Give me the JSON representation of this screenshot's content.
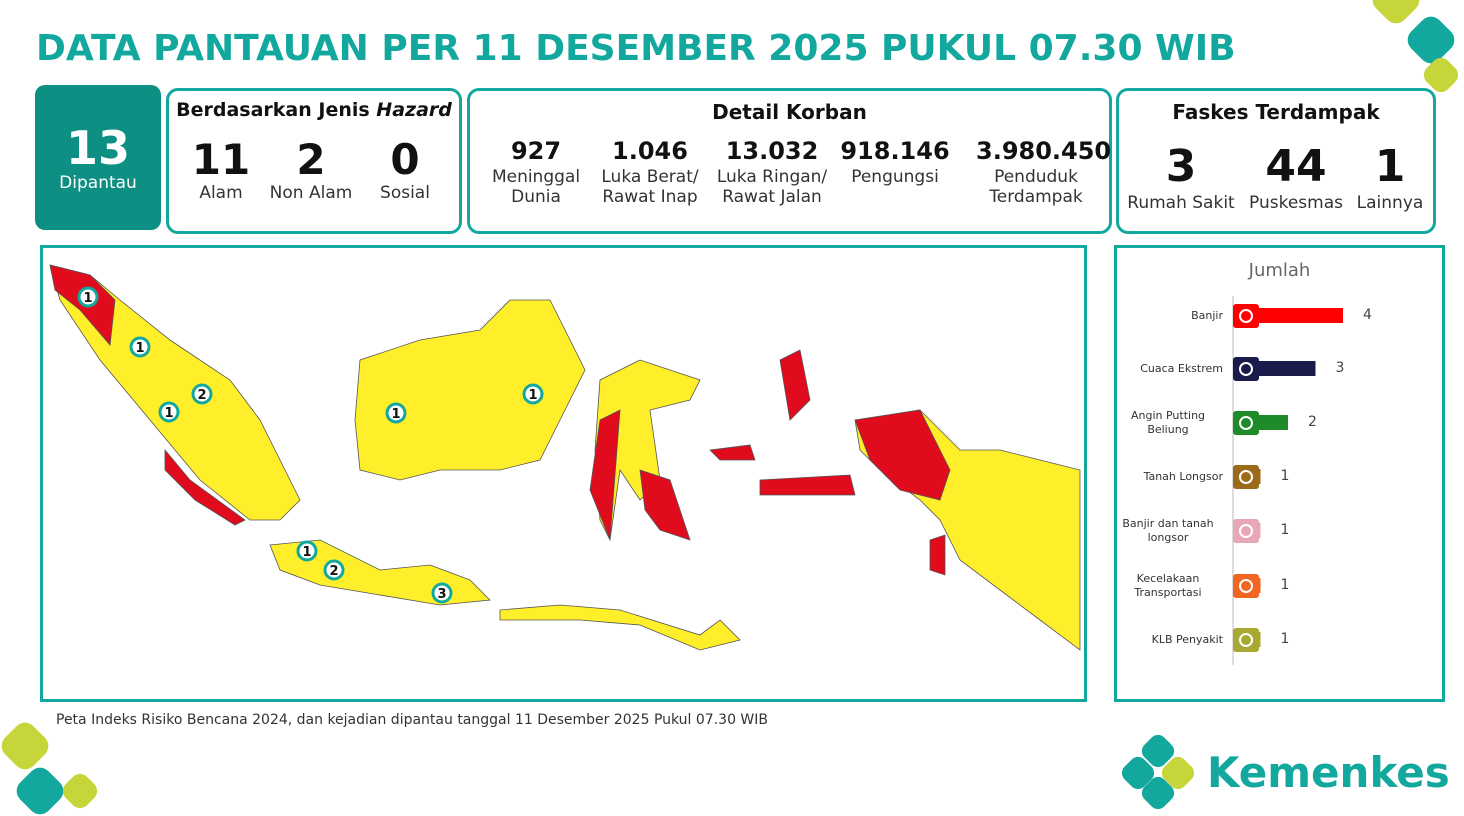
{
  "header": {
    "title": "DATA PANTAUAN PER 11 DESEMBER 2025 PUKUL 07.30 WIB"
  },
  "monitored": {
    "value": "13",
    "label": "Dipantau"
  },
  "hazard": {
    "title": "Berdasarkan Jenis",
    "title_emphasis": "Hazard",
    "items": [
      {
        "value": "11",
        "label": "Alam"
      },
      {
        "value": "2",
        "label": "Non Alam"
      },
      {
        "value": "0",
        "label": "Sosial"
      }
    ]
  },
  "victims": {
    "title": "Detail Korban",
    "items": [
      {
        "value": "927",
        "label": "Meninggal Dunia"
      },
      {
        "value": "1.046",
        "label": "Luka Berat/ Rawat Inap"
      },
      {
        "value": "13.032",
        "label": "Luka Ringan/ Rawat Jalan"
      },
      {
        "value": "918.146",
        "label": "Pengungsi"
      },
      {
        "value": "3.980.450",
        "label": "Penduduk Terdampak"
      }
    ]
  },
  "facilities": {
    "title": "Faskes Terdampak",
    "items": [
      {
        "value": "3",
        "label": "Rumah Sakit"
      },
      {
        "value": "44",
        "label": "Puskesmas"
      },
      {
        "value": "1",
        "label": "Lainnya"
      }
    ]
  },
  "map": {
    "markers": [
      "1",
      "1",
      "2",
      "1",
      "1",
      "1",
      "1",
      "2",
      "3"
    ],
    "note": "Peta Indeks Risiko Bencana 2024, dan kejadian dipantau tanggal 11 Desember 2025 Pukul 07.30 WIB"
  },
  "chart_data": {
    "type": "bar",
    "orientation": "horizontal",
    "title": "Jumlah",
    "categories": [
      "Banjir",
      "Cuaca Ekstrem",
      "Angin Putting Beliung",
      "Tanah Longsor",
      "Banjir dan tanah longsor",
      "Kecelakaan Transportasi",
      "KLB Penyakit"
    ],
    "values": [
      4,
      3,
      2,
      1,
      1,
      1,
      1
    ],
    "colors": [
      "#ff0000",
      "#1b1b4b",
      "#1e8a2a",
      "#9c6b1a",
      "#e8a7b6",
      "#f26522",
      "#a8a832"
    ],
    "xlim": [
      0,
      4
    ]
  },
  "footer": {
    "brand": "Kemenkes"
  }
}
